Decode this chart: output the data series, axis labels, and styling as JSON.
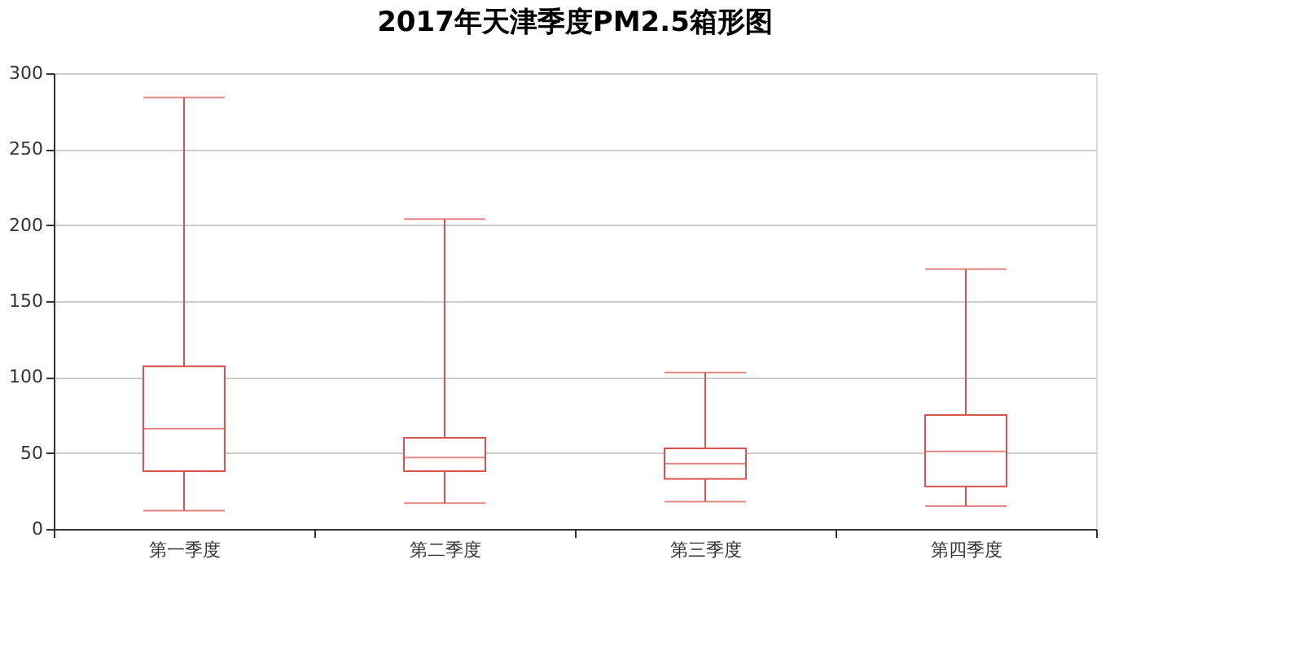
{
  "chart_data": {
    "type": "box",
    "title": "2017年天津季度PM2.5箱形图",
    "categories": [
      "第一季度",
      "第二季度",
      "第三季度",
      "第四季度"
    ],
    "series": [
      {
        "color": "#d9534f",
        "boxes": [
          {
            "low": 12,
            "q1": 38,
            "median": 66,
            "q3": 107,
            "high": 284
          },
          {
            "low": 17,
            "q1": 38,
            "median": 47,
            "q3": 60,
            "high": 204
          },
          {
            "low": 18,
            "q1": 33,
            "median": 43,
            "q3": 53,
            "high": 103
          },
          {
            "low": 15,
            "q1": 28,
            "median": 51,
            "q3": 75,
            "high": 171
          }
        ]
      }
    ],
    "ylim": [
      0,
      300
    ],
    "yticks": [
      0,
      50,
      100,
      150,
      200,
      250,
      300
    ],
    "grid": "y"
  }
}
